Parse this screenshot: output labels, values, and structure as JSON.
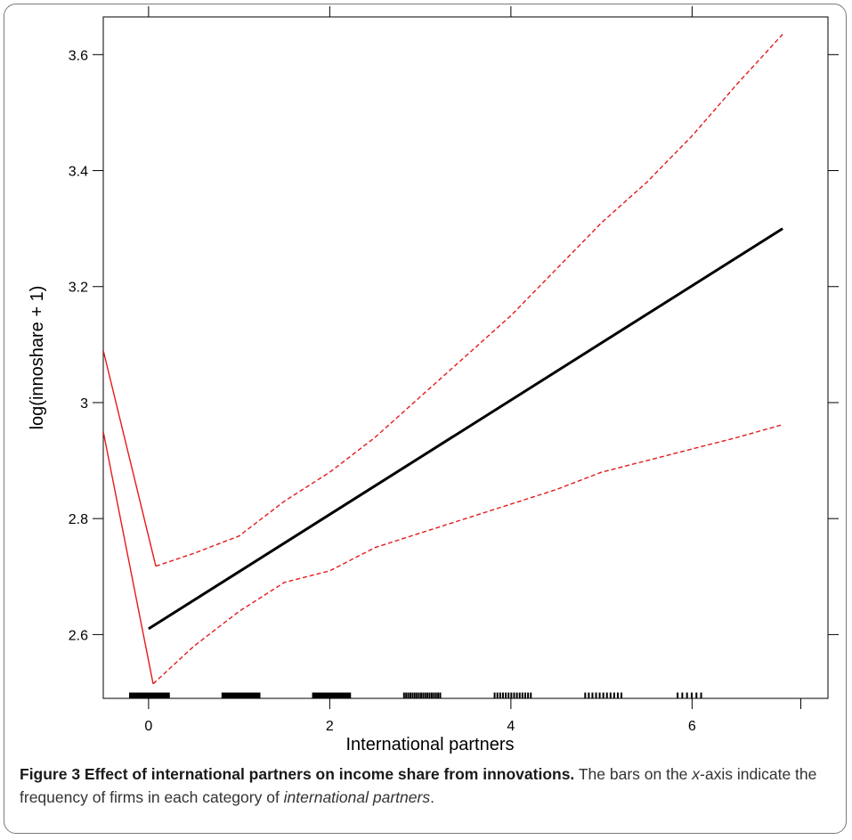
{
  "chart_data": {
    "type": "line",
    "title": "",
    "xlabel": "International partners",
    "ylabel": "log(innoshare + 1)",
    "xlim": [
      -0.5,
      7.5
    ],
    "ylim": [
      2.49,
      3.665
    ],
    "x_ticks": [
      0,
      2,
      4,
      6
    ],
    "x_tick_labels": [
      "0",
      "2",
      "4",
      "6"
    ],
    "y_ticks": [
      2.6,
      2.8,
      3.0,
      3.2,
      3.4,
      3.6
    ],
    "y_tick_labels": [
      "2.6",
      "2.8",
      "3",
      "3.2",
      "3.4",
      "3.6"
    ],
    "grid": false,
    "legend": "none",
    "series": [
      {
        "role": "fit",
        "style": "solid",
        "color": "#000000",
        "x": [
          0,
          7
        ],
        "y": [
          2.61,
          3.3
        ]
      },
      {
        "role": "upper-bound",
        "style": "dashed",
        "color": "#e31a1c",
        "x": [
          0.08,
          0.5,
          1.0,
          1.5,
          2.0,
          2.5,
          3.0,
          3.5,
          4.0,
          4.5,
          5.0,
          5.5,
          6.0,
          6.5,
          7.0
        ],
        "y": [
          2.718,
          2.74,
          2.77,
          2.83,
          2.88,
          2.94,
          3.01,
          3.08,
          3.15,
          3.23,
          3.31,
          3.38,
          3.46,
          3.55,
          3.635
        ]
      },
      {
        "role": "lower-bound",
        "style": "dashed",
        "color": "#e31a1c",
        "x": [
          0.05,
          0.5,
          1.0,
          1.5,
          2.0,
          2.5,
          3.0,
          3.5,
          4.0,
          4.5,
          5.0,
          5.5,
          6.0,
          6.5,
          7.0
        ],
        "y": [
          2.515,
          2.58,
          2.64,
          2.69,
          2.71,
          2.75,
          2.775,
          2.8,
          2.825,
          2.85,
          2.88,
          2.9,
          2.92,
          2.94,
          2.962
        ]
      },
      {
        "role": "upper-bound-extension",
        "style": "solid",
        "color": "#e31a1c",
        "x": [
          -0.5,
          0.08
        ],
        "y": [
          3.09,
          2.718
        ]
      },
      {
        "role": "lower-bound-extension",
        "style": "solid",
        "color": "#e31a1c",
        "x": [
          -0.5,
          0.05
        ],
        "y": [
          2.95,
          2.515
        ]
      }
    ],
    "rug": {
      "color": "#000000",
      "groups": [
        {
          "category": 0,
          "min": -0.2,
          "max": 0.22,
          "n": 30
        },
        {
          "category": 1,
          "min": 0.82,
          "max": 1.22,
          "n": 26
        },
        {
          "category": 2,
          "min": 1.82,
          "max": 2.22,
          "n": 22
        },
        {
          "category": 3,
          "min": 2.82,
          "max": 3.22,
          "n": 18
        },
        {
          "category": 4,
          "min": 3.82,
          "max": 4.22,
          "n": 14
        },
        {
          "category": 5,
          "min": 4.82,
          "max": 5.22,
          "n": 11
        },
        {
          "category": 6,
          "min": 5.84,
          "max": 6.1,
          "n": 6
        }
      ]
    }
  },
  "caption": {
    "bold": "Figure 3 Effect of international partners on income share from innovations.",
    "text1": " The bars on the ",
    "italic1": "x",
    "text2": "-axis indicate the frequency of firms in each category of ",
    "italic2": "international partners",
    "text3": "."
  }
}
